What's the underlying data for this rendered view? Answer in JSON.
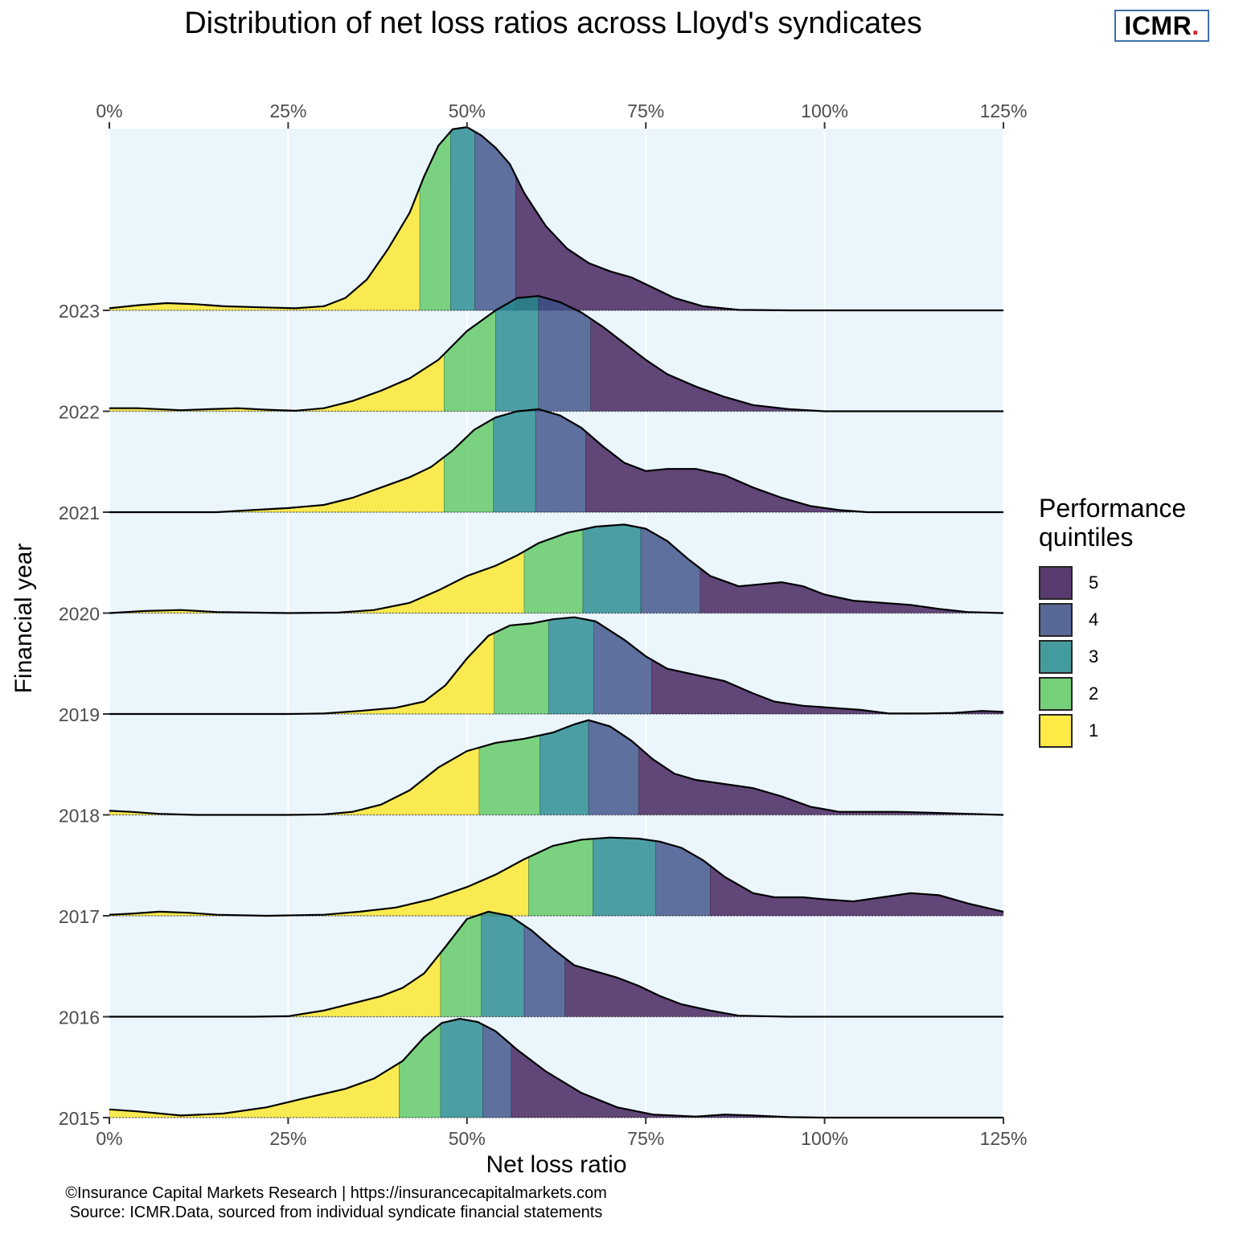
{
  "title": "Distribution of net loss ratios across Lloyd's syndicates",
  "logo": {
    "text": "ICMR",
    "dot": "."
  },
  "caption": {
    "line1": "©Insurance Capital Markets Research | https://insurancecapitalmarkets.com",
    "line2": "Source: ICMR.Data, sourced from individual syndicate financial statements"
  },
  "legend": {
    "title_line1": "Performance",
    "title_line2": "quintiles",
    "items": [
      {
        "label": "5",
        "color": "#3e1a56"
      },
      {
        "label": "4",
        "color": "#3b4f86"
      },
      {
        "label": "3",
        "color": "#238a8d"
      },
      {
        "label": "2",
        "color": "#5ec962"
      },
      {
        "label": "1",
        "color": "#fde725"
      }
    ]
  },
  "chart_data": {
    "type": "ridgeline density",
    "title": "Distribution of net loss ratios across Lloyd's syndicates",
    "xlabel": "Net loss ratio",
    "ylabel": "Financial year",
    "xlim": [
      0,
      125
    ],
    "x_ticks": [
      "0%",
      "25%",
      "50%",
      "75%",
      "100%",
      "125%"
    ],
    "x_tick_values": [
      0,
      25,
      50,
      75,
      100,
      125
    ],
    "categories": [
      "2015",
      "2016",
      "2017",
      "2018",
      "2019",
      "2020",
      "2021",
      "2022",
      "2023"
    ],
    "grid": true,
    "legend_position": "right",
    "panel_background": "#ebf5fc",
    "fill_opacity": 0.8,
    "series": [
      {
        "name": "2015",
        "quintile_breaks": [
          40.5,
          46.3,
          52.2,
          56.2
        ],
        "density": [
          [
            0,
            0.08
          ],
          [
            4,
            0.06
          ],
          [
            10,
            0.02
          ],
          [
            16,
            0.04
          ],
          [
            22,
            0.1
          ],
          [
            28,
            0.2
          ],
          [
            33,
            0.28
          ],
          [
            37,
            0.38
          ],
          [
            41,
            0.55
          ],
          [
            44,
            0.78
          ],
          [
            46.5,
            0.92
          ],
          [
            49,
            0.96
          ],
          [
            51.5,
            0.93
          ],
          [
            54,
            0.84
          ],
          [
            57,
            0.66
          ],
          [
            61,
            0.45
          ],
          [
            66,
            0.24
          ],
          [
            71,
            0.1
          ],
          [
            76,
            0.03
          ],
          [
            82,
            0.01
          ],
          [
            86,
            0.03
          ],
          [
            90,
            0.02
          ],
          [
            95,
            0.005
          ],
          [
            100,
            0.0
          ],
          [
            125,
            0.0
          ]
        ]
      },
      {
        "name": "2016",
        "quintile_breaks": [
          46.3,
          52.0,
          58.0,
          63.7
        ],
        "density": [
          [
            0,
            0
          ],
          [
            20,
            0
          ],
          [
            25,
            0.005
          ],
          [
            30,
            0.06
          ],
          [
            34,
            0.13
          ],
          [
            38,
            0.2
          ],
          [
            41,
            0.28
          ],
          [
            44,
            0.42
          ],
          [
            47,
            0.68
          ],
          [
            50,
            0.95
          ],
          [
            53,
            1.02
          ],
          [
            56,
            0.98
          ],
          [
            59,
            0.84
          ],
          [
            62,
            0.66
          ],
          [
            65,
            0.5
          ],
          [
            68,
            0.44
          ],
          [
            71,
            0.38
          ],
          [
            74,
            0.3
          ],
          [
            77,
            0.2
          ],
          [
            80,
            0.12
          ],
          [
            84,
            0.06
          ],
          [
            88,
            0.01
          ],
          [
            95,
            0
          ],
          [
            125,
            0
          ]
        ]
      },
      {
        "name": "2017",
        "quintile_breaks": [
          58.6,
          67.6,
          76.4,
          84.0
        ],
        "density": [
          [
            0,
            0.01
          ],
          [
            3,
            0.02
          ],
          [
            7,
            0.04
          ],
          [
            11,
            0.03
          ],
          [
            15,
            0.01
          ],
          [
            22,
            0.0
          ],
          [
            30,
            0.01
          ],
          [
            35,
            0.04
          ],
          [
            40,
            0.08
          ],
          [
            45,
            0.16
          ],
          [
            50,
            0.28
          ],
          [
            54,
            0.4
          ],
          [
            58,
            0.55
          ],
          [
            62,
            0.68
          ],
          [
            66,
            0.74
          ],
          [
            70,
            0.76
          ],
          [
            74,
            0.75
          ],
          [
            77,
            0.72
          ],
          [
            80,
            0.66
          ],
          [
            83,
            0.54
          ],
          [
            86,
            0.38
          ],
          [
            90,
            0.22
          ],
          [
            93,
            0.18
          ],
          [
            97,
            0.18
          ],
          [
            100,
            0.16
          ],
          [
            104,
            0.14
          ],
          [
            108,
            0.18
          ],
          [
            112,
            0.22
          ],
          [
            116,
            0.2
          ],
          [
            120,
            0.12
          ],
          [
            125,
            0.04
          ]
        ]
      },
      {
        "name": "2018",
        "quintile_breaks": [
          51.7,
          60.2,
          67.0,
          74.0
        ],
        "density": [
          [
            0,
            0.04
          ],
          [
            3,
            0.03
          ],
          [
            7,
            0.01
          ],
          [
            12,
            0
          ],
          [
            25,
            0
          ],
          [
            30,
            0.005
          ],
          [
            34,
            0.03
          ],
          [
            38,
            0.1
          ],
          [
            42,
            0.24
          ],
          [
            46,
            0.46
          ],
          [
            50,
            0.62
          ],
          [
            54,
            0.7
          ],
          [
            58,
            0.74
          ],
          [
            62,
            0.8
          ],
          [
            65,
            0.88
          ],
          [
            67,
            0.92
          ],
          [
            70,
            0.86
          ],
          [
            73,
            0.72
          ],
          [
            76,
            0.54
          ],
          [
            79,
            0.4
          ],
          [
            82,
            0.34
          ],
          [
            86,
            0.3
          ],
          [
            90,
            0.26
          ],
          [
            94,
            0.18
          ],
          [
            98,
            0.08
          ],
          [
            102,
            0.03
          ],
          [
            106,
            0.03
          ],
          [
            110,
            0.03
          ],
          [
            115,
            0.02
          ],
          [
            120,
            0.01
          ],
          [
            125,
            0
          ]
        ]
      },
      {
        "name": "2019",
        "quintile_breaks": [
          53.8,
          61.4,
          67.7,
          75.8
        ],
        "density": [
          [
            0,
            0
          ],
          [
            25,
            0
          ],
          [
            30,
            0.005
          ],
          [
            35,
            0.03
          ],
          [
            40,
            0.06
          ],
          [
            44,
            0.12
          ],
          [
            47,
            0.28
          ],
          [
            50,
            0.54
          ],
          [
            53,
            0.76
          ],
          [
            56,
            0.86
          ],
          [
            59,
            0.88
          ],
          [
            62,
            0.92
          ],
          [
            65,
            0.94
          ],
          [
            68,
            0.9
          ],
          [
            72,
            0.72
          ],
          [
            75,
            0.56
          ],
          [
            78,
            0.44
          ],
          [
            82,
            0.38
          ],
          [
            86,
            0.32
          ],
          [
            90,
            0.2
          ],
          [
            93,
            0.12
          ],
          [
            97,
            0.08
          ],
          [
            101,
            0.06
          ],
          [
            105,
            0.04
          ],
          [
            109,
            0.005
          ],
          [
            114,
            0.005
          ],
          [
            118,
            0.01
          ],
          [
            122,
            0.03
          ],
          [
            125,
            0.02
          ]
        ]
      },
      {
        "name": "2020",
        "quintile_breaks": [
          58.0,
          66.2,
          74.3,
          82.6
        ],
        "density": [
          [
            0,
            0
          ],
          [
            5,
            0.02
          ],
          [
            10,
            0.03
          ],
          [
            15,
            0.01
          ],
          [
            25,
            0
          ],
          [
            32,
            0.005
          ],
          [
            37,
            0.03
          ],
          [
            42,
            0.1
          ],
          [
            46,
            0.22
          ],
          [
            50,
            0.36
          ],
          [
            54,
            0.46
          ],
          [
            57,
            0.56
          ],
          [
            60,
            0.68
          ],
          [
            64,
            0.78
          ],
          [
            68,
            0.84
          ],
          [
            72,
            0.86
          ],
          [
            75,
            0.82
          ],
          [
            78,
            0.7
          ],
          [
            81,
            0.52
          ],
          [
            84,
            0.36
          ],
          [
            88,
            0.26
          ],
          [
            91,
            0.28
          ],
          [
            94,
            0.3
          ],
          [
            97,
            0.26
          ],
          [
            100,
            0.18
          ],
          [
            104,
            0.12
          ],
          [
            108,
            0.1
          ],
          [
            112,
            0.08
          ],
          [
            116,
            0.04
          ],
          [
            120,
            0.01
          ],
          [
            125,
            0
          ]
        ]
      },
      {
        "name": "2021",
        "quintile_breaks": [
          46.8,
          53.7,
          59.6,
          66.6
        ],
        "density": [
          [
            0,
            0
          ],
          [
            15,
            0
          ],
          [
            20,
            0.02
          ],
          [
            25,
            0.04
          ],
          [
            30,
            0.07
          ],
          [
            34,
            0.14
          ],
          [
            38,
            0.24
          ],
          [
            42,
            0.34
          ],
          [
            45,
            0.44
          ],
          [
            48,
            0.6
          ],
          [
            51,
            0.8
          ],
          [
            54,
            0.92
          ],
          [
            57,
            0.98
          ],
          [
            60,
            1.0
          ],
          [
            63,
            0.94
          ],
          [
            66,
            0.82
          ],
          [
            69,
            0.64
          ],
          [
            72,
            0.48
          ],
          [
            75,
            0.4
          ],
          [
            78,
            0.42
          ],
          [
            82,
            0.42
          ],
          [
            86,
            0.36
          ],
          [
            90,
            0.24
          ],
          [
            94,
            0.14
          ],
          [
            98,
            0.06
          ],
          [
            102,
            0.02
          ],
          [
            106,
            0
          ],
          [
            125,
            0
          ]
        ]
      },
      {
        "name": "2022",
        "quintile_breaks": [
          46.8,
          54.0,
          60.0,
          67.3
        ],
        "density": [
          [
            0,
            0.03
          ],
          [
            4,
            0.03
          ],
          [
            10,
            0.01
          ],
          [
            14,
            0.02
          ],
          [
            18,
            0.03
          ],
          [
            22,
            0.015
          ],
          [
            26,
            0.005
          ],
          [
            30,
            0.03
          ],
          [
            34,
            0.1
          ],
          [
            38,
            0.2
          ],
          [
            42,
            0.32
          ],
          [
            46,
            0.5
          ],
          [
            50,
            0.78
          ],
          [
            54,
            0.98
          ],
          [
            57,
            1.1
          ],
          [
            60,
            1.12
          ],
          [
            63,
            1.06
          ],
          [
            66,
            0.96
          ],
          [
            69,
            0.82
          ],
          [
            72,
            0.66
          ],
          [
            75,
            0.5
          ],
          [
            78,
            0.36
          ],
          [
            82,
            0.24
          ],
          [
            86,
            0.14
          ],
          [
            90,
            0.06
          ],
          [
            95,
            0.02
          ],
          [
            100,
            0
          ],
          [
            125,
            0
          ]
        ]
      },
      {
        "name": "2023",
        "quintile_breaks": [
          43.4,
          47.7,
          51.1,
          56.8
        ],
        "density": [
          [
            0,
            0.02
          ],
          [
            4,
            0.05
          ],
          [
            8,
            0.07
          ],
          [
            12,
            0.06
          ],
          [
            16,
            0.04
          ],
          [
            21,
            0.03
          ],
          [
            26,
            0.02
          ],
          [
            30,
            0.04
          ],
          [
            33,
            0.12
          ],
          [
            36,
            0.3
          ],
          [
            39,
            0.6
          ],
          [
            42,
            0.95
          ],
          [
            44,
            1.3
          ],
          [
            46,
            1.6
          ],
          [
            48,
            1.76
          ],
          [
            50,
            1.78
          ],
          [
            52,
            1.7
          ],
          [
            54,
            1.58
          ],
          [
            56,
            1.42
          ],
          [
            58,
            1.14
          ],
          [
            61,
            0.82
          ],
          [
            64,
            0.6
          ],
          [
            67,
            0.46
          ],
          [
            70,
            0.38
          ],
          [
            73,
            0.32
          ],
          [
            76,
            0.22
          ],
          [
            79,
            0.12
          ],
          [
            83,
            0.04
          ],
          [
            88,
            0.005
          ],
          [
            95,
            0
          ],
          [
            125,
            0
          ]
        ]
      }
    ]
  }
}
